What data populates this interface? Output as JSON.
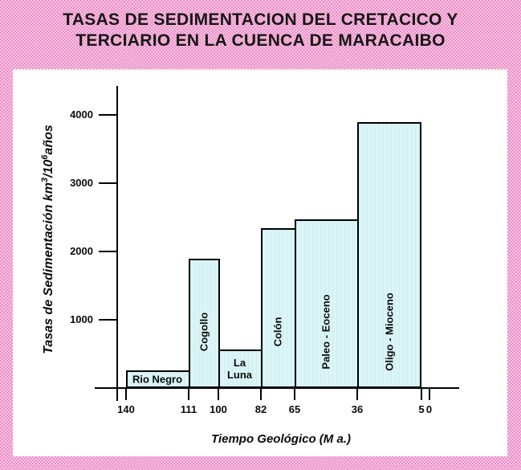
{
  "title": {
    "line1": "TASAS DE SEDIMENTACION DEL CRETACICO Y",
    "line2": "TERCIARIO EN LA CUENCA DE MARACAIBO"
  },
  "chart_data": {
    "type": "bar",
    "title": "TASAS DE SEDIMENTACION DEL CRETACICO Y TERCIARIO EN LA CUENCA DE MARACAIBO",
    "xlabel": "Tiempo Geológico (M a.)",
    "ylabel": "Tasas de Sedimentación km³/10⁶años",
    "ylabel_parts": [
      {
        "text": "Tasas de Sedimentación km"
      },
      {
        "text": "3",
        "sup": true
      },
      {
        "text": "/10"
      },
      {
        "text": "6",
        "sup": true
      },
      {
        "text": "años"
      }
    ],
    "ylim": [
      0,
      4400
    ],
    "yticks": [
      1000,
      2000,
      3000,
      4000
    ],
    "xticks_ma": [
      140,
      111,
      100,
      82,
      65,
      36,
      5,
      0
    ],
    "x_axis": {
      "unit": "Ma",
      "reversed": true,
      "min": 0,
      "max": 140
    },
    "grid": false,
    "legend": "none",
    "bars": [
      {
        "label": "Rio Negro",
        "from_ma": 140,
        "to_ma": 111,
        "value": 260,
        "label_layout": "horizontal"
      },
      {
        "label": "Cogollo",
        "from_ma": 111,
        "to_ma": 100,
        "value": 1900,
        "label_layout": "vertical"
      },
      {
        "label": "La Luna",
        "from_ma": 100,
        "to_ma": 82,
        "value": 570,
        "label_layout": "stacked"
      },
      {
        "label": "Colón",
        "from_ma": 82,
        "to_ma": 65,
        "value": 2340,
        "label_layout": "vertical"
      },
      {
        "label": "Paleo - Eoceno",
        "from_ma": 65,
        "to_ma": 36,
        "value": 2470,
        "label_layout": "vertical"
      },
      {
        "label": "Oligo - Mioceno",
        "from_ma": 36,
        "to_ma": 5,
        "value": 3890,
        "label_layout": "vertical"
      }
    ],
    "colors": {
      "background_pink": "#F1A6D2",
      "plot_background": "#FFFFFF",
      "bar_fill": "#DBF5F7",
      "bar_stripe": "#CDEFF2",
      "bar_border": "#000000",
      "axis": "#000000",
      "text": "#0B0B0B"
    }
  }
}
